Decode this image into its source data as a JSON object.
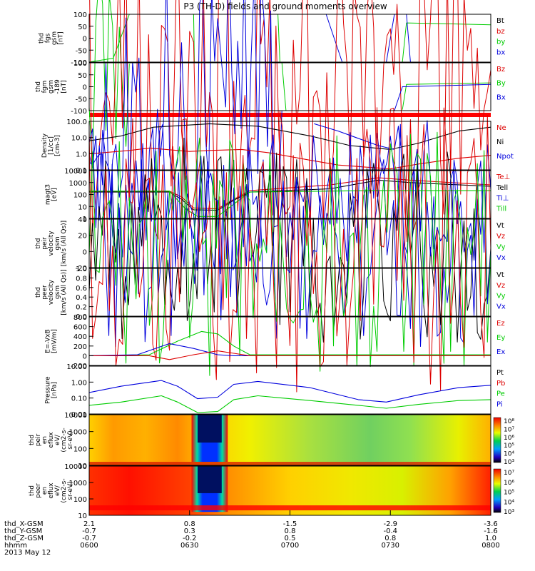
{
  "title": "P3 (TH-D) fields and ground moments overview",
  "colors": {
    "black": "#000000",
    "red": "#dd0000",
    "green": "#00cc00",
    "blue": "#0000dd"
  },
  "chart_data": {
    "type": "line",
    "x_ticks": [
      "0600",
      "0630",
      "0700",
      "0730",
      "0800"
    ],
    "x_label_rows": [
      {
        "name": "thd_X-GSM",
        "values": [
          "2.1",
          "0.8",
          "-1.5",
          "-2.9",
          "-3.6"
        ]
      },
      {
        "name": "thd_Y-GSM",
        "values": [
          "-0.7",
          "0.3",
          "0.8",
          "-0.4",
          "-1.6"
        ]
      },
      {
        "name": "thd_Z-GSM",
        "values": [
          "-0.7",
          "-0.2",
          "0.5",
          "0.8",
          "1.0"
        ]
      },
      {
        "name": "hhmm",
        "values": [
          "0600",
          "0630",
          "0700",
          "0730",
          "0800"
        ]
      }
    ],
    "date": "2013 May 12",
    "panels": [
      {
        "id": "fgs",
        "ylabel": [
          "thd",
          "fgs",
          "gsm",
          "[nT]"
        ],
        "yticks": [
          "100",
          "50",
          "0",
          "-50",
          "-100"
        ],
        "legend": [
          {
            "t": "Bt",
            "c": "black"
          },
          {
            "t": "bz",
            "c": "red"
          },
          {
            "t": "by",
            "c": "green"
          },
          {
            "t": "bx",
            "c": "blue"
          }
        ]
      },
      {
        "id": "fgm",
        "ylabel": [
          "thd",
          "fgm",
          "gsm",
          "-189",
          "[nT]"
        ],
        "yticks": [
          "100",
          "50",
          "0",
          "-50",
          "-100"
        ],
        "legend": [
          {
            "t": "Bz",
            "c": "red"
          },
          {
            "t": "By",
            "c": "green"
          },
          {
            "t": "Bx",
            "c": "blue"
          }
        ]
      },
      {
        "id": "density",
        "ylabel": [
          "Density",
          "[1/cc]",
          "[cm-3]"
        ],
        "yticks": [
          "100.0",
          "10.0",
          "1.0",
          "0.1"
        ],
        "legend": [
          {
            "t": "Ne",
            "c": "red"
          },
          {
            "t": "Ni",
            "c": "black"
          },
          {
            "t": "Npot",
            "c": "blue"
          }
        ]
      },
      {
        "id": "temp",
        "ylabel": [
          "magt3",
          "[eV]"
        ],
        "yticks": [
          "10000",
          "1000",
          "100",
          "10",
          "1"
        ],
        "legend": [
          {
            "t": "Te⊥",
            "c": "red"
          },
          {
            "t": "Tell",
            "c": "black"
          },
          {
            "t": "Ti⊥",
            "c": "blue"
          },
          {
            "t": "Till",
            "c": "green"
          }
        ]
      },
      {
        "id": "peir_vel",
        "ylabel": [
          "thd",
          "peir",
          "velocity",
          "gsm",
          "[km/s (All Qs)]"
        ],
        "yticks": [
          "40",
          "20",
          "0",
          "-20"
        ],
        "legend": [
          {
            "t": "Vt",
            "c": "black"
          },
          {
            "t": "Vz",
            "c": "red"
          },
          {
            "t": "Vy",
            "c": "green"
          },
          {
            "t": "Vx",
            "c": "blue"
          }
        ]
      },
      {
        "id": "peer_vel",
        "ylabel": [
          "thd",
          "peer",
          "velocity",
          "gsm",
          "[km/s (All Qs)]"
        ],
        "yticks": [
          "1.0",
          "0.8",
          "0.6",
          "0.4",
          "0.2",
          "0.0"
        ],
        "legend": [
          {
            "t": "Vt",
            "c": "black"
          },
          {
            "t": "Vz",
            "c": "red"
          },
          {
            "t": "Vy",
            "c": "green"
          },
          {
            "t": "Vx",
            "c": "blue"
          }
        ]
      },
      {
        "id": "efield",
        "ylabel": [
          "E=-VxB",
          "[mV/m]"
        ],
        "yticks": [
          "800",
          "600",
          "400",
          "200",
          "0",
          "-200"
        ],
        "legend": [
          {
            "t": "Ez",
            "c": "red"
          },
          {
            "t": "Ey",
            "c": "green"
          },
          {
            "t": "Ex",
            "c": "blue"
          }
        ]
      },
      {
        "id": "pressure",
        "ylabel": [
          "Pressure",
          "[nPa]"
        ],
        "yticks": [
          "10.00",
          "1.00",
          "0.10",
          "0.01"
        ],
        "legend": [
          {
            "t": "Pt",
            "c": "black"
          },
          {
            "t": "Pb",
            "c": "red"
          },
          {
            "t": "Pe",
            "c": "green"
          },
          {
            "t": "Pi",
            "c": "blue"
          }
        ]
      },
      {
        "id": "peir_spec",
        "ylabel": [
          "thd",
          "peir",
          "en",
          "eflux",
          "eV/",
          "(cm2-s-",
          "sr-eV)"
        ],
        "yticks": [
          "10000",
          "1000",
          "100",
          "10"
        ],
        "cbar": [
          "10⁸",
          "10⁷",
          "10⁶",
          "10⁵",
          "10⁴",
          "10³"
        ]
      },
      {
        "id": "peer_spec",
        "ylabel": [
          "thd",
          "peer",
          "en",
          "eflux",
          "eV/",
          "(cm2-s-",
          "sr-eV)"
        ],
        "yticks": [
          "10000",
          "1000",
          "100",
          "10"
        ],
        "cbar": [
          "10⁷",
          "10⁶",
          "10⁵",
          "10⁴",
          "10³"
        ]
      }
    ]
  }
}
